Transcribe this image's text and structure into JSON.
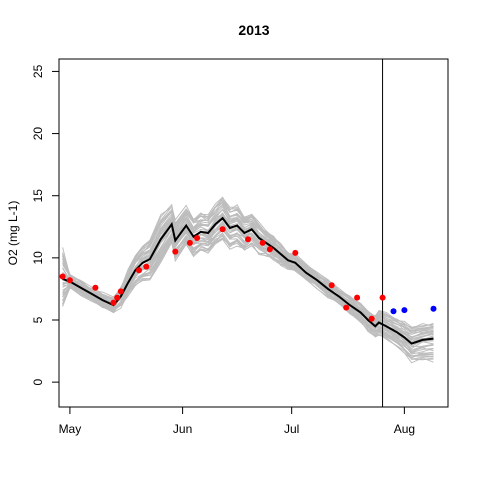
{
  "chart_data": {
    "type": "line",
    "title": "2013",
    "xlabel": "",
    "ylabel": "O2 (mg L-1)",
    "xlim": [
      "2013-04-28",
      "2013-08-13"
    ],
    "ylim": [
      -2,
      26
    ],
    "grid": false,
    "legend": "none",
    "x_ticks": [
      {
        "date": "2013-05-01",
        "label": "May"
      },
      {
        "date": "2013-06-01",
        "label": "Jun"
      },
      {
        "date": "2013-07-01",
        "label": "Jul"
      },
      {
        "date": "2013-08-01",
        "label": "Aug"
      }
    ],
    "y_ticks": [
      0,
      5,
      10,
      15,
      20,
      25
    ],
    "vline": {
      "date": "2013-07-26"
    },
    "colors": {
      "ensemble": "#bdbdbd",
      "median": "#000000",
      "calibration_obs": "#ff0000",
      "validation_obs": "#0000ff",
      "vline": "#000000"
    },
    "series": [
      {
        "role": "median",
        "points": [
          [
            "2013-04-29",
            8.3
          ],
          [
            "2013-05-01",
            8.1
          ],
          [
            "2013-05-04",
            7.6
          ],
          [
            "2013-05-07",
            7.1
          ],
          [
            "2013-05-10",
            6.6
          ],
          [
            "2013-05-13",
            6.2
          ],
          [
            "2013-05-15",
            6.9
          ],
          [
            "2013-05-17",
            8.0
          ],
          [
            "2013-05-19",
            9.0
          ],
          [
            "2013-05-21",
            9.6
          ],
          [
            "2013-05-23",
            9.9
          ],
          [
            "2013-05-26",
            11.5
          ],
          [
            "2013-05-29",
            12.7
          ],
          [
            "2013-05-30",
            11.4
          ],
          [
            "2013-06-02",
            12.6
          ],
          [
            "2013-06-04",
            11.7
          ],
          [
            "2013-06-06",
            12.1
          ],
          [
            "2013-06-08",
            12.0
          ],
          [
            "2013-06-10",
            12.7
          ],
          [
            "2013-06-12",
            13.2
          ],
          [
            "2013-06-14",
            12.4
          ],
          [
            "2013-06-16",
            12.6
          ],
          [
            "2013-06-18",
            12.0
          ],
          [
            "2013-06-20",
            12.3
          ],
          [
            "2013-06-22",
            11.6
          ],
          [
            "2013-06-24",
            11.2
          ],
          [
            "2013-06-26",
            10.8
          ],
          [
            "2013-06-28",
            10.3
          ],
          [
            "2013-06-30",
            9.8
          ],
          [
            "2013-07-02",
            9.6
          ],
          [
            "2013-07-05",
            8.8
          ],
          [
            "2013-07-08",
            8.2
          ],
          [
            "2013-07-11",
            7.5
          ],
          [
            "2013-07-14",
            6.9
          ],
          [
            "2013-07-17",
            6.2
          ],
          [
            "2013-07-20",
            5.6
          ],
          [
            "2013-07-22",
            5.0
          ],
          [
            "2013-07-24",
            4.5
          ],
          [
            "2013-07-25",
            4.8
          ],
          [
            "2013-07-27",
            4.5
          ],
          [
            "2013-07-30",
            4.0
          ],
          [
            "2013-08-01",
            3.6
          ],
          [
            "2013-08-03",
            3.1
          ],
          [
            "2013-08-06",
            3.4
          ],
          [
            "2013-08-09",
            3.5
          ]
        ]
      }
    ],
    "ensemble": {
      "spread": [
        [
          2.2,
          2.4
        ],
        [
          0.5,
          0.5
        ],
        [
          0.5,
          0.5
        ],
        [
          0.5,
          0.5
        ],
        [
          0.5,
          0.5
        ],
        [
          0.6,
          0.6
        ],
        [
          0.8,
          0.8
        ],
        [
          1.0,
          1.0
        ],
        [
          1.2,
          1.2
        ],
        [
          1.4,
          1.4
        ],
        [
          1.6,
          1.6
        ],
        [
          1.8,
          1.8
        ],
        [
          1.5,
          1.5
        ],
        [
          1.5,
          1.5
        ],
        [
          1.5,
          1.5
        ],
        [
          1.5,
          1.5
        ],
        [
          1.5,
          1.5
        ],
        [
          1.5,
          1.5
        ],
        [
          1.6,
          1.6
        ],
        [
          1.7,
          1.7
        ],
        [
          1.6,
          1.6
        ],
        [
          1.5,
          1.5
        ],
        [
          1.4,
          1.4
        ],
        [
          1.3,
          1.3
        ],
        [
          1.2,
          1.2
        ],
        [
          1.0,
          1.0
        ],
        [
          0.9,
          0.9
        ],
        [
          0.8,
          0.8
        ],
        [
          0.7,
          0.7
        ],
        [
          0.6,
          0.6
        ],
        [
          0.6,
          0.6
        ],
        [
          0.6,
          0.6
        ],
        [
          0.6,
          0.6
        ],
        [
          0.6,
          0.6
        ],
        [
          0.6,
          0.6
        ],
        [
          0.7,
          0.7
        ],
        [
          0.8,
          0.8
        ],
        [
          0.8,
          0.8
        ],
        [
          0.9,
          0.9
        ],
        [
          1.0,
          1.0
        ],
        [
          1.1,
          1.1
        ],
        [
          1.2,
          1.2
        ],
        [
          1.4,
          1.4
        ],
        [
          1.6,
          1.3
        ],
        [
          1.8,
          1.2
        ]
      ],
      "members": 40
    },
    "observations": [
      {
        "date": "2013-04-29",
        "value": 8.5,
        "type": "calibration"
      },
      {
        "date": "2013-05-01",
        "value": 8.2,
        "type": "calibration"
      },
      {
        "date": "2013-05-08",
        "value": 7.6,
        "type": "calibration"
      },
      {
        "date": "2013-05-13",
        "value": 6.4,
        "type": "calibration"
      },
      {
        "date": "2013-05-14",
        "value": 6.8,
        "type": "calibration"
      },
      {
        "date": "2013-05-15",
        "value": 7.3,
        "type": "calibration"
      },
      {
        "date": "2013-05-20",
        "value": 9.0,
        "type": "calibration"
      },
      {
        "date": "2013-05-22",
        "value": 9.3,
        "type": "calibration"
      },
      {
        "date": "2013-05-30",
        "value": 10.5,
        "type": "calibration"
      },
      {
        "date": "2013-06-03",
        "value": 11.2,
        "type": "calibration"
      },
      {
        "date": "2013-06-05",
        "value": 11.6,
        "type": "calibration"
      },
      {
        "date": "2013-06-12",
        "value": 12.3,
        "type": "calibration"
      },
      {
        "date": "2013-06-19",
        "value": 11.5,
        "type": "calibration"
      },
      {
        "date": "2013-06-23",
        "value": 11.2,
        "type": "calibration"
      },
      {
        "date": "2013-06-25",
        "value": 10.7,
        "type": "calibration"
      },
      {
        "date": "2013-07-02",
        "value": 10.4,
        "type": "calibration"
      },
      {
        "date": "2013-07-12",
        "value": 7.8,
        "type": "calibration"
      },
      {
        "date": "2013-07-16",
        "value": 6.0,
        "type": "calibration"
      },
      {
        "date": "2013-07-19",
        "value": 6.8,
        "type": "calibration"
      },
      {
        "date": "2013-07-23",
        "value": 5.1,
        "type": "calibration"
      },
      {
        "date": "2013-07-26",
        "value": 6.8,
        "type": "calibration"
      },
      {
        "date": "2013-07-29",
        "value": 5.7,
        "type": "validation"
      },
      {
        "date": "2013-08-01",
        "value": 5.8,
        "type": "validation"
      },
      {
        "date": "2013-08-09",
        "value": 5.9,
        "type": "validation"
      }
    ]
  }
}
